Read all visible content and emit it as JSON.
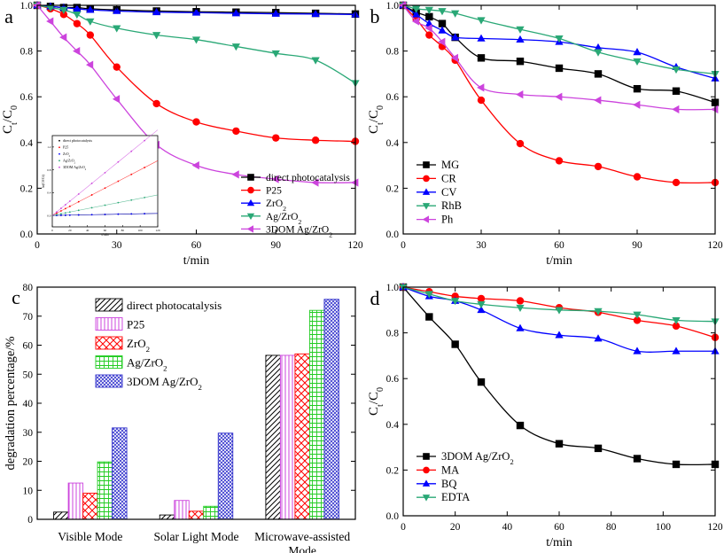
{
  "chart_data": [
    {
      "id": "a",
      "panel_label": "a",
      "type": "line",
      "xlabel": "t/min",
      "ylabel": "Ct/C0",
      "xlim": [
        0,
        120
      ],
      "ylim": [
        0,
        1.0
      ],
      "xticks": [
        0,
        30,
        60,
        90,
        120
      ],
      "yticks": [
        0.0,
        0.2,
        0.4,
        0.6,
        0.8,
        1.0
      ],
      "legend_position": "bottom-right",
      "x": [
        0,
        5,
        10,
        15,
        20,
        30,
        45,
        60,
        75,
        90,
        105,
        120
      ],
      "series": [
        {
          "name": "direct photocatalysis",
          "label_main": "direct photocatalysis",
          "label_sub": "",
          "label_tail": "",
          "color": "#000000",
          "marker": "square",
          "values": [
            1.0,
            0.995,
            0.99,
            0.99,
            0.985,
            0.98,
            0.975,
            0.972,
            0.97,
            0.968,
            0.965,
            0.962
          ]
        },
        {
          "name": "P25",
          "label_main": "P25",
          "label_sub": "",
          "label_tail": "",
          "color": "#ff0000",
          "marker": "circle",
          "values": [
            1.0,
            0.985,
            0.96,
            0.92,
            0.87,
            0.73,
            0.57,
            0.49,
            0.45,
            0.42,
            0.41,
            0.405
          ]
        },
        {
          "name": "ZrO2",
          "label_main": "ZrO",
          "label_sub": "2",
          "label_tail": "",
          "color": "#0000ff",
          "marker": "triangle-up",
          "values": [
            1.0,
            0.995,
            0.99,
            0.985,
            0.98,
            0.975,
            0.97,
            0.968,
            0.965,
            0.963,
            0.962,
            0.96
          ]
        },
        {
          "name": "Ag/ZrO2",
          "label_main": "Ag/ZrO",
          "label_sub": "2",
          "label_tail": "",
          "color": "#2aa876",
          "marker": "triangle-down",
          "values": [
            1.0,
            0.99,
            0.98,
            0.96,
            0.93,
            0.9,
            0.87,
            0.85,
            0.82,
            0.79,
            0.76,
            0.66
          ]
        },
        {
          "name": "3DOM Ag/ZrO2",
          "label_main": "3DOM Ag/ZrO",
          "label_sub": "2",
          "label_tail": "",
          "color": "#cc44dd",
          "marker": "triangle-left",
          "values": [
            1.0,
            0.93,
            0.86,
            0.8,
            0.74,
            0.59,
            0.39,
            0.3,
            0.26,
            0.24,
            0.225,
            0.225
          ]
        }
      ],
      "inset": {
        "xlabel": "t/min",
        "ylabel": "ln(C0/Ct)",
        "legend": [
          {
            "main": "direct photocatalysis",
            "sub": "",
            "tail": ""
          },
          {
            "main": "P25",
            "sub": "",
            "tail": ""
          },
          {
            "main": "ZrO",
            "sub": "2",
            "tail": ""
          },
          {
            "main": "Ag/ZrO",
            "sub": "2",
            "tail": ""
          },
          {
            "main": "3DOM Ag/ZrO",
            "sub": "2",
            "tail": ""
          }
        ]
      }
    },
    {
      "id": "b",
      "panel_label": "b",
      "type": "line",
      "xlabel": "t/min",
      "ylabel": "Ct/C0",
      "xlim": [
        0,
        120
      ],
      "ylim": [
        0,
        1.0
      ],
      "xticks": [
        0,
        30,
        60,
        90,
        120
      ],
      "yticks": [
        0.0,
        0.2,
        0.4,
        0.6,
        0.8,
        1.0
      ],
      "legend_position": "bottom-left",
      "x": [
        0,
        5,
        10,
        15,
        20,
        30,
        45,
        60,
        75,
        90,
        105,
        120
      ],
      "series": [
        {
          "name": "MG",
          "label_main": "MG",
          "label_sub": "",
          "label_tail": "",
          "color": "#000000",
          "marker": "square",
          "values": [
            1.0,
            0.97,
            0.95,
            0.92,
            0.86,
            0.77,
            0.755,
            0.725,
            0.7,
            0.635,
            0.625,
            0.575
          ]
        },
        {
          "name": "CR",
          "label_main": "CR",
          "label_sub": "",
          "label_tail": "",
          "color": "#ff0000",
          "marker": "circle",
          "values": [
            1.0,
            0.94,
            0.87,
            0.82,
            0.76,
            0.585,
            0.395,
            0.32,
            0.295,
            0.25,
            0.225,
            0.225
          ]
        },
        {
          "name": "CV",
          "label_main": "CV",
          "label_sub": "",
          "label_tail": "",
          "color": "#0000ff",
          "marker": "triangle-up",
          "values": [
            1.0,
            0.96,
            0.92,
            0.89,
            0.86,
            0.855,
            0.85,
            0.84,
            0.815,
            0.795,
            0.73,
            0.68
          ]
        },
        {
          "name": "RhB",
          "label_main": "RhB",
          "label_sub": "",
          "label_tail": "",
          "color": "#2aa876",
          "marker": "triangle-down",
          "values": [
            1.0,
            0.985,
            0.98,
            0.975,
            0.965,
            0.935,
            0.895,
            0.855,
            0.795,
            0.755,
            0.72,
            0.7
          ]
        },
        {
          "name": "Ph",
          "label_main": "Ph",
          "label_sub": "",
          "label_tail": "",
          "color": "#cc44dd",
          "marker": "triangle-left",
          "values": [
            1.0,
            0.93,
            0.9,
            0.84,
            0.77,
            0.64,
            0.61,
            0.6,
            0.585,
            0.565,
            0.545,
            0.545
          ]
        }
      ]
    },
    {
      "id": "c",
      "panel_label": "c",
      "type": "bar",
      "xlabel": "",
      "ylabel": "degradation percentage/%",
      "ylim": [
        0,
        80
      ],
      "yticks": [
        0,
        10,
        20,
        30,
        40,
        50,
        60,
        70,
        80
      ],
      "legend_position": "top-left",
      "categories": [
        {
          "lines": [
            "Visible Mode"
          ]
        },
        {
          "lines": [
            "Solar Light Mode"
          ]
        },
        {
          "lines": [
            "Microwave-assisted",
            "Mode"
          ]
        }
      ],
      "series": [
        {
          "name": "direct photocatalysis",
          "label_main": "direct photocatalysis",
          "label_sub": "",
          "label_tail": "",
          "color": "#000000",
          "pattern": "diag-right",
          "values": [
            2.5,
            1.5,
            56.5
          ]
        },
        {
          "name": "P25",
          "label_main": "P25",
          "label_sub": "",
          "label_tail": "",
          "color": "#cc44dd",
          "pattern": "vertical",
          "values": [
            12.5,
            6.5,
            56.5
          ]
        },
        {
          "name": "ZrO2",
          "label_main": "ZrO",
          "label_sub": "2",
          "label_tail": "",
          "color": "#ff0000",
          "pattern": "cross",
          "values": [
            9,
            2.8,
            57
          ]
        },
        {
          "name": "Ag/ZrO2",
          "label_main": "Ag/ZrO",
          "label_sub": "2",
          "label_tail": "",
          "color": "#22cc22",
          "pattern": "grid",
          "values": [
            19.8,
            4.5,
            72
          ]
        },
        {
          "name": "3DOM Ag/ZrO2",
          "label_main": "3DOM Ag/ZrO",
          "label_sub": "2",
          "label_tail": "",
          "color": "#3333cc",
          "pattern": "dots",
          "values": [
            31.5,
            29.7,
            75.8
          ]
        }
      ]
    },
    {
      "id": "d",
      "panel_label": "d",
      "type": "line",
      "xlabel": "t/min",
      "ylabel": "Ct/C0",
      "xlim": [
        0,
        120
      ],
      "ylim": [
        0,
        1.0
      ],
      "xticks": [
        0,
        20,
        40,
        60,
        80,
        100,
        120
      ],
      "yticks": [
        0.0,
        0.2,
        0.4,
        0.6,
        0.8,
        1.0
      ],
      "legend_position": "bottom-left",
      "x": [
        0,
        10,
        20,
        30,
        45,
        60,
        75,
        90,
        105,
        120
      ],
      "series": [
        {
          "name": "3DOM Ag/ZrO2",
          "label_main": "3DOM Ag/ZrO",
          "label_sub": "2",
          "label_tail": "",
          "color": "#000000",
          "marker": "square",
          "values": [
            1.0,
            0.87,
            0.75,
            0.585,
            0.395,
            0.315,
            0.295,
            0.25,
            0.225,
            0.225
          ]
        },
        {
          "name": "MA",
          "label_main": "MA",
          "label_sub": "",
          "label_tail": "",
          "color": "#ff0000",
          "marker": "circle",
          "values": [
            1.0,
            0.98,
            0.96,
            0.95,
            0.94,
            0.91,
            0.89,
            0.855,
            0.83,
            0.78
          ]
        },
        {
          "name": "BQ",
          "label_main": "BQ",
          "label_sub": "",
          "label_tail": "",
          "color": "#0000ff",
          "marker": "triangle-up",
          "values": [
            1.0,
            0.96,
            0.94,
            0.9,
            0.82,
            0.79,
            0.775,
            0.72,
            0.72,
            0.72
          ]
        },
        {
          "name": "EDTA",
          "label_main": "EDTA",
          "label_sub": "",
          "label_tail": "",
          "color": "#2aa876",
          "marker": "triangle-down",
          "values": [
            1.0,
            0.97,
            0.94,
            0.925,
            0.91,
            0.9,
            0.895,
            0.88,
            0.855,
            0.85
          ]
        }
      ]
    }
  ]
}
